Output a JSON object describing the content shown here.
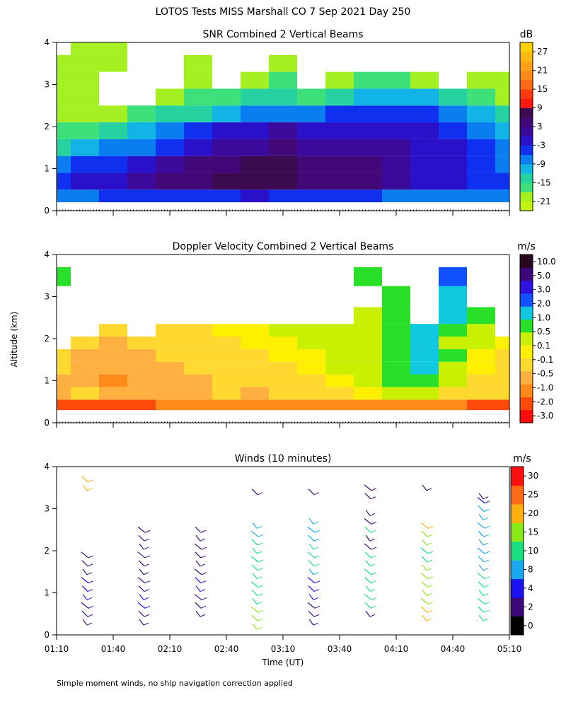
{
  "figure_title": "LOTOS Tests MISS Marshall CO   7 Sep 2021 Day 250",
  "footnote": "Simple moment winds, no ship navigation correction applied",
  "shared_axes": {
    "ylabel": "Altitude (km)",
    "ylim": [
      0,
      4
    ],
    "yticks": [
      "0",
      "1",
      "2",
      "3",
      "4"
    ],
    "xlabel": "Time (UT)",
    "xlim_min": [
      70,
      310
    ],
    "xtick_min": [
      70,
      100,
      130,
      160,
      190,
      220,
      250,
      280,
      310
    ],
    "xtick_labels": [
      "01:10",
      "01:40",
      "02:10",
      "02:40",
      "03:10",
      "03:40",
      "04:10",
      "04:40",
      "05:10"
    ]
  },
  "colorbar_unit_labels": {
    "snr": "dB",
    "doppler": "m/s",
    "winds": "m/s"
  },
  "chart_data": [
    {
      "type": "heatmap",
      "id": "snr",
      "title": "SNR Combined 2 Vertical Beams",
      "unit": "dB",
      "x_minutes": [
        70,
        85,
        100,
        115,
        130,
        145,
        160,
        175,
        190,
        205,
        220,
        235,
        250,
        265,
        280,
        295,
        310
      ],
      "altitude_km": [
        0.3,
        0.7,
        1.1,
        1.5,
        1.9,
        2.3,
        2.7,
        3.1,
        3.5,
        3.9
      ],
      "z_rows": [
        [
          -9,
          -9,
          -6,
          -6,
          -6,
          -6,
          -6,
          -3,
          -6,
          -6,
          -6,
          -6,
          -9,
          -9,
          -9,
          -9,
          -9
        ],
        [
          -6,
          -3,
          -3,
          0,
          3,
          5,
          6,
          6,
          6,
          5,
          4,
          3,
          0,
          -3,
          -3,
          -6,
          -6
        ],
        [
          -9,
          -6,
          -6,
          -3,
          0,
          3,
          5,
          6,
          6,
          5,
          5,
          3,
          1,
          -1,
          -3,
          -6,
          -9
        ],
        [
          -15,
          -12,
          -9,
          -9,
          -6,
          -3,
          0,
          2,
          3,
          2,
          2,
          1,
          0,
          -2,
          -3,
          -6,
          -9
        ],
        [
          -18,
          -18,
          -15,
          -12,
          -9,
          -6,
          -3,
          -1,
          0,
          -1,
          -1,
          -3,
          -3,
          -3,
          -6,
          -9,
          -12
        ],
        [
          -21,
          -21,
          -21,
          -18,
          -15,
          -15,
          -12,
          -9,
          -9,
          -9,
          -6,
          -6,
          -6,
          -6,
          -9,
          -12,
          -15
        ],
        [
          -21,
          -21,
          null,
          null,
          -21,
          -18,
          -18,
          -15,
          -15,
          -18,
          -15,
          -12,
          -12,
          -12,
          -15,
          -18,
          -21
        ],
        [
          -21,
          -21,
          null,
          null,
          null,
          -21,
          null,
          -21,
          -18,
          null,
          -21,
          -18,
          -18,
          -21,
          null,
          -21,
          -21
        ],
        [
          -21,
          -21,
          -21,
          null,
          null,
          -21,
          null,
          null,
          -21,
          null,
          null,
          null,
          null,
          null,
          null,
          null,
          null
        ],
        [
          null,
          -21,
          -21,
          null,
          null,
          null,
          null,
          null,
          null,
          null,
          null,
          null,
          null,
          null,
          null,
          null,
          null
        ]
      ],
      "colorbar": {
        "ticks": [
          "27",
          "21",
          "15",
          "9",
          "3",
          "-3",
          "-9",
          "-15",
          "-21"
        ],
        "levels": [
          -24,
          -21,
          -18,
          -15,
          -12,
          -9,
          -6,
          -3,
          0,
          3,
          6,
          9,
          12,
          15,
          18,
          21,
          24,
          27,
          30
        ],
        "colors": [
          "#c2f40f",
          "#a4f023",
          "#3de07b",
          "#25d2a0",
          "#12b4e6",
          "#0a7ef0",
          "#1030f0",
          "#2a10c8",
          "#3c0a9a",
          "#420878",
          "#3c0a50",
          "#ff1a10",
          "#ff3a10",
          "#ff6a14",
          "#ff8a1c",
          "#ffa018",
          "#ffb810",
          "#ffd000"
        ]
      }
    },
    {
      "type": "heatmap",
      "id": "doppler",
      "title": "Doppler Velocity Combined 2 Vertical Beams",
      "unit": "m/s",
      "x_minutes": [
        70,
        85,
        100,
        115,
        130,
        145,
        160,
        175,
        190,
        205,
        220,
        235,
        250,
        265,
        280,
        295,
        310
      ],
      "altitude_km": [
        0.4,
        0.7,
        1.0,
        1.3,
        1.6,
        1.9,
        2.2,
        2.5,
        3.0,
        3.5
      ],
      "z_rows": [
        [
          -3.0,
          -3.0,
          -3.0,
          -3.0,
          -2.0,
          -2.0,
          -2.0,
          -2.0,
          -2.0,
          -2.0,
          -2.0,
          -2.0,
          -2.0,
          -2.0,
          -2.0,
          -3.0,
          -3.0
        ],
        [
          -0.8,
          -0.5,
          -0.8,
          -1.0,
          -0.8,
          -0.6,
          -0.5,
          -0.6,
          -0.4,
          -0.3,
          -0.2,
          -0.1,
          0.3,
          0.4,
          -0.2,
          -0.4,
          -0.5
        ],
        [
          -0.6,
          -0.8,
          -1.2,
          -1.0,
          -0.7,
          -0.6,
          -0.5,
          -0.5,
          -0.3,
          -0.2,
          -0.1,
          0.2,
          0.5,
          0.8,
          0.2,
          -0.2,
          -0.5
        ],
        [
          -0.5,
          -0.7,
          -1.0,
          -0.8,
          -0.6,
          -0.5,
          -0.4,
          -0.3,
          -0.2,
          -0.1,
          0.1,
          0.3,
          0.6,
          1.0,
          0.3,
          -0.1,
          -0.3
        ],
        [
          -0.4,
          -0.6,
          -0.8,
          -0.6,
          -0.5,
          -0.4,
          -0.3,
          -0.2,
          -0.1,
          0.0,
          0.2,
          0.4,
          0.8,
          1.5,
          0.5,
          0.0,
          -0.2
        ],
        [
          null,
          -0.4,
          -0.6,
          -0.5,
          -0.4,
          -0.3,
          -0.2,
          -0.1,
          0.0,
          0.1,
          0.2,
          0.3,
          0.5,
          1.0,
          0.4,
          0.1,
          -0.1
        ],
        [
          null,
          null,
          -0.4,
          null,
          -0.3,
          -0.2,
          -0.1,
          0.0,
          0.1,
          0.2,
          0.2,
          0.4,
          0.6,
          1.2,
          0.8,
          0.3,
          null
        ],
        [
          null,
          null,
          null,
          null,
          null,
          null,
          null,
          null,
          null,
          null,
          null,
          0.2,
          0.6,
          null,
          1.0,
          0.5,
          null
        ],
        [
          null,
          null,
          null,
          null,
          null,
          null,
          null,
          null,
          null,
          null,
          null,
          null,
          0.8,
          null,
          1.5,
          null,
          null
        ],
        [
          0.6,
          null,
          null,
          null,
          null,
          null,
          null,
          null,
          null,
          null,
          null,
          0.5,
          null,
          null,
          2.5,
          null,
          null
        ]
      ],
      "colorbar": {
        "ticks": [
          "10.0",
          "5.0",
          "3.0",
          "2.0",
          "1.0",
          "0.5",
          "0.1",
          "-0.1",
          "-0.5",
          "-1.0",
          "-2.0",
          "-3.0"
        ],
        "levels": [
          -4.0,
          -3.0,
          -2.0,
          -1.0,
          -0.5,
          -0.1,
          0.1,
          0.5,
          1.0,
          2.0,
          3.0,
          5.0,
          10.0,
          15.0
        ],
        "colors": [
          "#ff0a0a",
          "#ff4a0a",
          "#ff8a1a",
          "#ffb040",
          "#ffd830",
          "#fff000",
          "#c8f000",
          "#28e028",
          "#10c8e0",
          "#1050ff",
          "#3010e0",
          "#3a087a",
          "#2a0520"
        ]
      }
    },
    {
      "type": "wind_barbs",
      "id": "winds",
      "title": "Winds (10 minutes)",
      "unit": "m/s",
      "profiles": [
        {
          "time_min": 85,
          "heights": [
            0.3,
            0.5,
            0.7,
            0.9,
            1.1,
            1.3,
            1.5,
            1.7,
            1.9,
            3.5,
            3.7
          ],
          "speeds": [
            3,
            3,
            3,
            4,
            4,
            4,
            3,
            3,
            3,
            22,
            22
          ]
        },
        {
          "time_min": 115,
          "heights": [
            0.3,
            0.5,
            0.7,
            0.9,
            1.1,
            1.3,
            1.5,
            1.7,
            1.9,
            2.1,
            2.3,
            2.5
          ],
          "speeds": [
            3,
            3,
            6,
            4,
            3,
            3,
            3,
            3,
            3,
            3,
            3,
            3
          ]
        },
        {
          "time_min": 145,
          "heights": [
            0.5,
            0.7,
            0.9,
            1.1,
            1.3,
            1.5,
            1.7,
            1.9,
            2.1,
            2.3,
            2.5
          ],
          "speeds": [
            3,
            3,
            3,
            4,
            4,
            3,
            3,
            3,
            3,
            3,
            3
          ]
        },
        {
          "time_min": 175,
          "heights": [
            0.2,
            0.4,
            0.6,
            0.8,
            1.0,
            1.2,
            1.4,
            1.6,
            1.8,
            2.0,
            2.2,
            2.4,
            2.6,
            3.4
          ],
          "speeds": [
            17,
            15,
            16,
            14,
            12,
            12,
            10,
            10,
            10,
            10,
            10,
            9,
            9,
            3
          ]
        },
        {
          "time_min": 205,
          "heights": [
            0.3,
            0.5,
            0.7,
            0.9,
            1.1,
            1.3,
            1.5,
            1.7,
            1.9,
            2.1,
            2.3,
            2.5,
            2.7,
            3.4
          ],
          "speeds": [
            3,
            3,
            3,
            4,
            4,
            6,
            8,
            10,
            14,
            10,
            9,
            9,
            8,
            3
          ]
        },
        {
          "time_min": 235,
          "heights": [
            0.5,
            0.7,
            0.9,
            1.1,
            1.3,
            1.5,
            1.7,
            1.9,
            2.1,
            2.3,
            2.5,
            2.7,
            2.9,
            3.3,
            3.5
          ],
          "speeds": [
            3,
            11,
            12,
            12,
            13,
            13,
            12,
            11,
            3,
            3,
            11,
            3,
            3,
            3,
            3
          ]
        },
        {
          "time_min": 265,
          "heights": [
            0.4,
            0.6,
            0.8,
            1.0,
            1.2,
            1.4,
            1.6,
            1.8,
            2.0,
            2.2,
            2.4,
            2.6,
            3.5
          ],
          "speeds": [
            21,
            20,
            19,
            17,
            16,
            15,
            15,
            14,
            14,
            16,
            17,
            21,
            3
          ]
        },
        {
          "time_min": 295,
          "heights": [
            0.4,
            0.6,
            0.8,
            1.0,
            1.2,
            1.4,
            1.6,
            1.8,
            2.0,
            2.2,
            2.4,
            2.6,
            2.8,
            3.0,
            3.2,
            3.3
          ],
          "speeds": [
            14,
            13,
            13,
            11,
            10,
            10,
            9,
            9,
            9,
            9,
            9,
            9,
            9,
            8,
            6,
            3
          ]
        }
      ],
      "colorbar": {
        "ticks": [
          "30",
          "25",
          "20",
          "15",
          "10",
          "8",
          "4",
          "2",
          "0"
        ],
        "levels": [
          0,
          2,
          4,
          8,
          10,
          15,
          20,
          25,
          30,
          35
        ],
        "colors": [
          "#000000",
          "#3c0a78",
          "#1a10f0",
          "#18a8f0",
          "#18e080",
          "#88e818",
          "#ffb010",
          "#ff6a14",
          "#ff1010"
        ]
      }
    }
  ]
}
